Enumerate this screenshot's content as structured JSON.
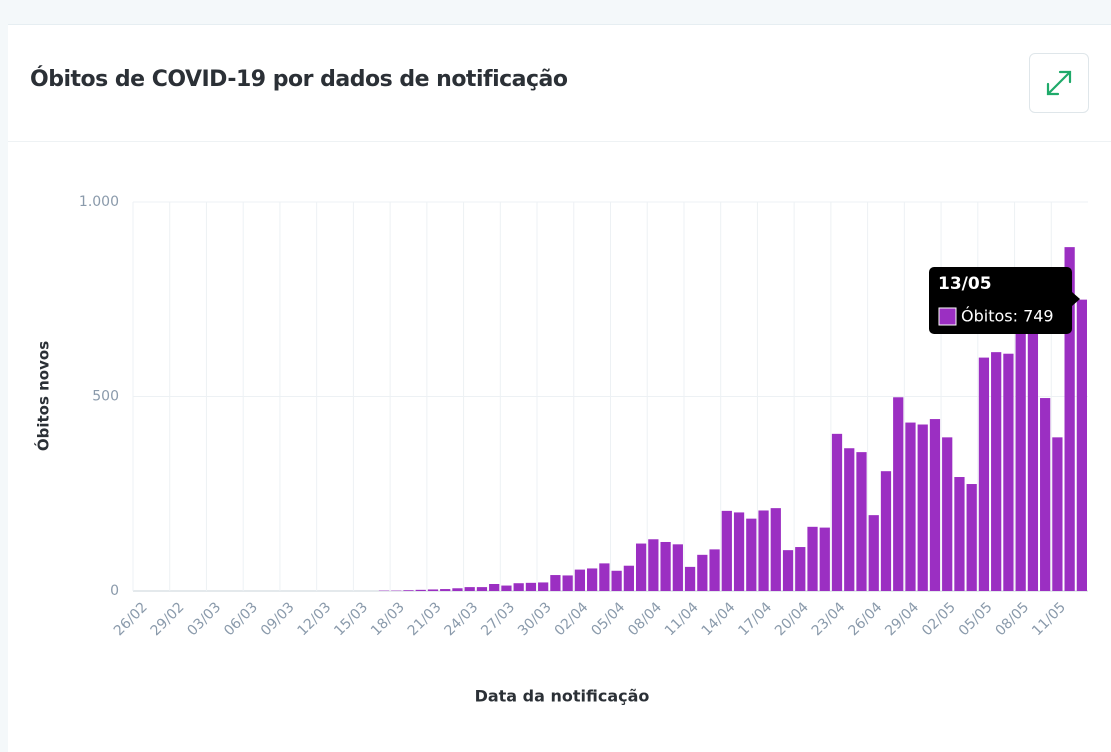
{
  "chart_data": {
    "type": "bar",
    "title": "Óbitos de COVID-19 por dados de notificação",
    "x_label": "Data da notificação",
    "y_label": "Óbitos novos",
    "series": [
      {
        "name": "Óbitos",
        "color": "#9b2fc2",
        "values": [
          0,
          0,
          0,
          0,
          0,
          0,
          0,
          0,
          0,
          0,
          0,
          0,
          0,
          0,
          0,
          0,
          0,
          0,
          0,
          0,
          1,
          1,
          2,
          3,
          4,
          5,
          7,
          10,
          10,
          18,
          14,
          20,
          21,
          22,
          41,
          40,
          55,
          58,
          71,
          52,
          65,
          122,
          133,
          126,
          120,
          62,
          93,
          107,
          206,
          202,
          186,
          207,
          213,
          105,
          113,
          165,
          163,
          404,
          367,
          357,
          195,
          308,
          498,
          433,
          428,
          442,
          395,
          293,
          275,
          600,
          614,
          610,
          700,
          730,
          496,
          395,
          884,
          749
        ]
      }
    ],
    "categories": [
      "26/02",
      null,
      null,
      "29/02",
      null,
      null,
      "03/03",
      null,
      null,
      "06/03",
      null,
      null,
      "09/03",
      null,
      null,
      "12/03",
      null,
      null,
      "15/03",
      null,
      null,
      "18/03",
      null,
      null,
      "21/03",
      null,
      null,
      "24/03",
      null,
      null,
      "27/03",
      null,
      null,
      "30/03",
      null,
      null,
      "02/04",
      null,
      null,
      "05/04",
      null,
      null,
      "08/04",
      null,
      null,
      "11/04",
      null,
      null,
      "14/04",
      null,
      null,
      "17/04",
      null,
      null,
      "20/04",
      null,
      null,
      "23/04",
      null,
      null,
      "26/04",
      null,
      null,
      "29/04",
      null,
      null,
      "02/05",
      null,
      null,
      "05/05",
      null,
      null,
      "08/05",
      null,
      null,
      "11/05",
      null,
      null
    ],
    "ylim": [
      0,
      1000
    ],
    "yticks": [
      0,
      500,
      {
        "value": 1000,
        "label": "1.000"
      }
    ],
    "grid": true,
    "tooltip": {
      "title": "13/05",
      "text": "Óbitos: 749"
    }
  }
}
